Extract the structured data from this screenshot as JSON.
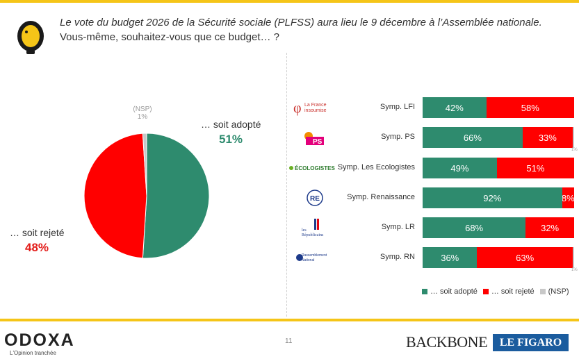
{
  "question": {
    "line1": "Le vote du budget 2026 de la Sécurité sociale (PLFSS) aura lieu le 9 décembre à l’Assemblée nationale.",
    "line2": "Vous-même, souhaitez-vous que ce budget… ?"
  },
  "pie": {
    "adopte_label": "… soit adopté",
    "adopte_pct": "51%",
    "rejete_label": "… soit rejeté",
    "rejete_pct": "48%",
    "nsp_label": "(NSP)",
    "nsp_pct": "1%"
  },
  "logos": {
    "lfi_line1": "La France",
    "lfi_line2": "insoumise",
    "ps": "PS",
    "eco": "ÉCOLOGISTES",
    "re": "RE",
    "lr_line1": "les",
    "lr_line2": "Républicains",
    "rn_line1": "Rassemblement",
    "rn_line2": "National"
  },
  "colors": {
    "adopte": "#2e8b6e",
    "rejete": "#ff0000",
    "nsp": "#c8c8c8",
    "brand_yellow": "#f5c518"
  },
  "legend": {
    "adopte": "… soit adopté",
    "rejete": "… soit rejeté",
    "nsp": "(NSP)"
  },
  "chart_data": [
    {
      "type": "pie",
      "categories": [
        "… soit adopté",
        "… soit rejeté",
        "(NSP)"
      ],
      "values": [
        51,
        48,
        1
      ]
    },
    {
      "type": "bar",
      "orientation": "horizontal-stacked",
      "categories": [
        "Symp. LFI",
        "Symp. PS",
        "Symp. Les Ecologistes",
        "Symp. Renaissance",
        "Symp. LR",
        "Symp. RN"
      ],
      "series": [
        {
          "name": "… soit adopté",
          "values": [
            42,
            66,
            49,
            92,
            68,
            36
          ],
          "labels": [
            "42%",
            "66%",
            "49%",
            "92%",
            "68%",
            "36%"
          ]
        },
        {
          "name": "… soit rejeté",
          "values": [
            58,
            33,
            51,
            8,
            32,
            63
          ],
          "labels": [
            "58%",
            "33%",
            "51%",
            "8%",
            "32%",
            "63%"
          ]
        },
        {
          "name": "(NSP)",
          "values": [
            0,
            1,
            0,
            0,
            0,
            1
          ],
          "labels": [
            "",
            "1%",
            "",
            "",
            "",
            "1%"
          ]
        }
      ],
      "legend_position": "bottom-right"
    }
  ],
  "footer": {
    "brand": "ODOXA",
    "tagline": "L'Opinion tranchée",
    "page": "11",
    "partner1": "BACKBONE",
    "partner2": "LE FIGARO"
  }
}
